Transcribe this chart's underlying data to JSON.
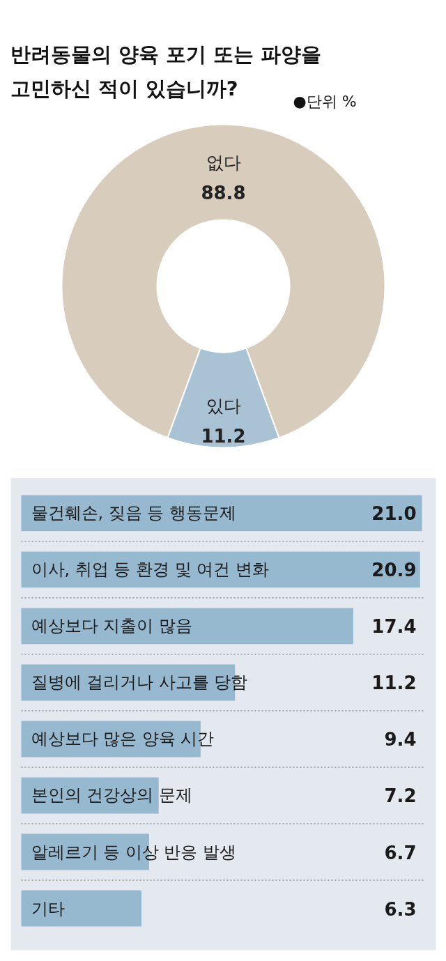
{
  "chart_data": [
    {
      "type": "donut",
      "title": "반려동물의 양육 포기 또는 파양을\n고민하신 적이 있습니까?",
      "subtitle": "●단위 %",
      "categories": [
        "없다",
        "있다"
      ],
      "values": [
        88.8,
        11.2
      ],
      "colors": [
        "#d8cdbc",
        "#a9c2d4"
      ],
      "data_labels": true,
      "legend": false
    },
    {
      "type": "bar",
      "orientation": "horizontal",
      "categories": [
        "물건훼손, 짖음 등 행동문제",
        "이사, 취업 등 환경 및 여건 변화",
        "예상보다 지출이 많음",
        "질병에 걸리거나 사고를 당함",
        "예상보다 많은 양육 시간",
        "본인의 건강상의 문제",
        "알레르기 등 이상 반응 발생",
        "기타"
      ],
      "values": [
        21.0,
        20.9,
        17.4,
        11.2,
        9.4,
        7.2,
        6.7,
        6.3
      ],
      "value_labels": [
        "21.0",
        "20.9",
        "17.4",
        "11.2",
        "9.4",
        "7.2",
        "6.7",
        "6.3"
      ],
      "color": "#97b9cf",
      "xlim": [
        0,
        21
      ],
      "tick_labels": false
    }
  ]
}
